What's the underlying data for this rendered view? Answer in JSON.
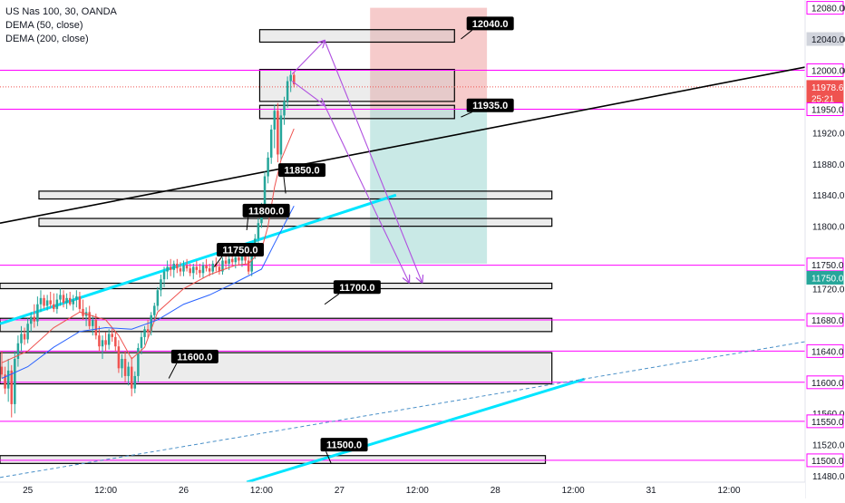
{
  "legend": {
    "symbol": "US Nas 100, 30, OANDA",
    "indicator_1": "DEMA (50, close)",
    "indicator_2": "DEMA (200, close)"
  },
  "colors": {
    "candle_up": "#26a69a",
    "candle_down": "#ef5350",
    "dema_fast": "#ef5350",
    "dema_slow": "#2962ff",
    "level_line": "#ff00ff",
    "trend_cyan": "#00e5ff",
    "projection": "#b050e0",
    "target_zone": "#b2dfdb",
    "stop_zone": "#f4c2c2",
    "price_tag_active": "#26a69a"
  },
  "chart_data": {
    "type": "candlestick",
    "title": "US Nas 100, 30, OANDA",
    "xlabel": "",
    "ylabel": "",
    "ylim": [
      11472,
      12090
    ],
    "y_ticks": [
      12080.0,
      12040.0,
      12000.0,
      11960.0,
      11920.0,
      11880.0,
      11840.0,
      11800.0,
      11760.0,
      11720.0,
      11680.0,
      11640.0,
      11600.0,
      11560.0,
      11520.0,
      11480.0
    ],
    "y_tick_labels": [
      "12080.0",
      "12040.0",
      "12000.0",
      "",
      "11920.0",
      "11880.0",
      "11840.0",
      "11800.0",
      "",
      "11720.0",
      "",
      "",
      "",
      "11560.0",
      "11520.0",
      "11480.0"
    ],
    "x_range_hours": [
      0,
      124
    ],
    "x_ticks": [
      {
        "h": 4,
        "label": "25"
      },
      {
        "h": 16,
        "label": "12:00"
      },
      {
        "h": 28,
        "label": "26"
      },
      {
        "h": 40,
        "label": "12:00"
      },
      {
        "h": 52,
        "label": "27"
      },
      {
        "h": 64,
        "label": "12:00"
      },
      {
        "h": 76,
        "label": "28"
      },
      {
        "h": 88,
        "label": "12:00"
      },
      {
        "h": 100,
        "label": "31"
      },
      {
        "h": 112,
        "label": "12:00"
      }
    ],
    "candles": [
      [
        0.0,
        11620,
        11640,
        11605,
        11610
      ],
      [
        0.5,
        11610,
        11620,
        11585,
        11592
      ],
      [
        1.0,
        11592,
        11630,
        11575,
        11615
      ],
      [
        1.5,
        11615,
        11622,
        11555,
        11572
      ],
      [
        2.0,
        11572,
        11640,
        11560,
        11630
      ],
      [
        2.5,
        11630,
        11660,
        11620,
        11650
      ],
      [
        3.0,
        11650,
        11672,
        11640,
        11662
      ],
      [
        3.5,
        11662,
        11670,
        11648,
        11655
      ],
      [
        4.0,
        11655,
        11682,
        11650,
        11675
      ],
      [
        4.5,
        11675,
        11690,
        11665,
        11684
      ],
      [
        5.0,
        11684,
        11700,
        11670,
        11678
      ],
      [
        5.5,
        11678,
        11710,
        11672,
        11700
      ],
      [
        6.0,
        11700,
        11718,
        11690,
        11708
      ],
      [
        6.5,
        11708,
        11712,
        11694,
        11698
      ],
      [
        7.0,
        11698,
        11712,
        11692,
        11705
      ],
      [
        7.5,
        11705,
        11716,
        11695,
        11700
      ],
      [
        8.0,
        11700,
        11714,
        11690,
        11694
      ],
      [
        8.5,
        11694,
        11714,
        11688,
        11706
      ],
      [
        9.0,
        11706,
        11720,
        11698,
        11712
      ],
      [
        9.5,
        11712,
        11718,
        11696,
        11702
      ],
      [
        10.0,
        11702,
        11714,
        11694,
        11708
      ],
      [
        10.5,
        11708,
        11716,
        11698,
        11700
      ],
      [
        11.0,
        11700,
        11712,
        11692,
        11706
      ],
      [
        11.5,
        11706,
        11718,
        11696,
        11710
      ],
      [
        12.0,
        11710,
        11716,
        11690,
        11694
      ],
      [
        12.5,
        11694,
        11706,
        11680,
        11685
      ],
      [
        13.0,
        11685,
        11696,
        11672,
        11690
      ],
      [
        13.5,
        11690,
        11698,
        11668,
        11672
      ],
      [
        14.0,
        11672,
        11686,
        11660,
        11680
      ],
      [
        14.5,
        11680,
        11688,
        11655,
        11660
      ],
      [
        15.0,
        11660,
        11672,
        11640,
        11646
      ],
      [
        15.5,
        11646,
        11660,
        11630,
        11654
      ],
      [
        16.0,
        11654,
        11664,
        11640,
        11648
      ],
      [
        16.5,
        11648,
        11668,
        11642,
        11662
      ],
      [
        17.0,
        11662,
        11670,
        11652,
        11658
      ],
      [
        17.5,
        11658,
        11666,
        11640,
        11646
      ],
      [
        18.0,
        11646,
        11654,
        11612,
        11618
      ],
      [
        18.5,
        11618,
        11636,
        11606,
        11630
      ],
      [
        19.0,
        11630,
        11640,
        11600,
        11608
      ],
      [
        19.5,
        11608,
        11626,
        11596,
        11620
      ],
      [
        20.0,
        11620,
        11632,
        11582,
        11592
      ],
      [
        20.5,
        11592,
        11614,
        11586,
        11608
      ],
      [
        21.0,
        11608,
        11650,
        11600,
        11644
      ],
      [
        21.5,
        11644,
        11664,
        11636,
        11658
      ],
      [
        22.0,
        11658,
        11672,
        11648,
        11668
      ],
      [
        22.5,
        11668,
        11680,
        11656,
        11664
      ],
      [
        23.0,
        11664,
        11690,
        11660,
        11686
      ],
      [
        23.5,
        11686,
        11702,
        11678,
        11698
      ],
      [
        24.0,
        11698,
        11722,
        11692,
        11718
      ],
      [
        24.5,
        11718,
        11738,
        11710,
        11732
      ],
      [
        25.0,
        11732,
        11748,
        11722,
        11742
      ],
      [
        25.5,
        11742,
        11756,
        11732,
        11748
      ],
      [
        26.0,
        11748,
        11758,
        11736,
        11744
      ],
      [
        26.5,
        11744,
        11756,
        11734,
        11752
      ],
      [
        27.0,
        11752,
        11758,
        11740,
        11746
      ],
      [
        27.5,
        11746,
        11754,
        11736,
        11742
      ],
      [
        28.0,
        11742,
        11756,
        11736,
        11750
      ],
      [
        28.5,
        11750,
        11758,
        11742,
        11746
      ],
      [
        29.0,
        11746,
        11752,
        11736,
        11740
      ],
      [
        29.5,
        11740,
        11752,
        11732,
        11748
      ],
      [
        30.0,
        11748,
        11756,
        11738,
        11744
      ],
      [
        30.5,
        11744,
        11752,
        11734,
        11740
      ],
      [
        31.0,
        11740,
        11754,
        11734,
        11750
      ],
      [
        31.5,
        11750,
        11758,
        11742,
        11746
      ],
      [
        32.0,
        11746,
        11752,
        11736,
        11742
      ],
      [
        32.5,
        11742,
        11756,
        11738,
        11752
      ],
      [
        33.0,
        11752,
        11760,
        11742,
        11748
      ],
      [
        33.5,
        11748,
        11754,
        11738,
        11742
      ],
      [
        34.0,
        11742,
        11760,
        11738,
        11756
      ],
      [
        34.5,
        11756,
        11764,
        11746,
        11752
      ],
      [
        35.0,
        11752,
        11762,
        11744,
        11758
      ],
      [
        35.5,
        11758,
        11766,
        11748,
        11754
      ],
      [
        36.0,
        11754,
        11764,
        11746,
        11760
      ],
      [
        36.5,
        11760,
        11768,
        11750,
        11756
      ],
      [
        37.0,
        11756,
        11766,
        11748,
        11762
      ],
      [
        37.5,
        11762,
        11770,
        11752,
        11756
      ],
      [
        38.0,
        11756,
        11764,
        11738,
        11742
      ],
      [
        38.5,
        11742,
        11770,
        11736,
        11764
      ],
      [
        39.0,
        11764,
        11790,
        11758,
        11784
      ],
      [
        39.5,
        11784,
        11810,
        11778,
        11804
      ],
      [
        40.0,
        11804,
        11830,
        11798,
        11826
      ],
      [
        40.5,
        11826,
        11870,
        11820,
        11864
      ],
      [
        41.0,
        11864,
        11895,
        11855,
        11888
      ],
      [
        41.5,
        11888,
        11930,
        11880,
        11924
      ],
      [
        42.0,
        11924,
        11956,
        11900,
        11948
      ],
      [
        42.5,
        11948,
        11958,
        11882,
        11892
      ],
      [
        43.0,
        11892,
        11950,
        11884,
        11942
      ],
      [
        43.5,
        11942,
        11966,
        11930,
        11960
      ],
      [
        44.0,
        11960,
        11992,
        11952,
        11986
      ],
      [
        44.5,
        11986,
        12000,
        11972,
        11994
      ],
      [
        45.0,
        11994,
        11998,
        11978,
        11982
      ]
    ],
    "dema_50": [
      [
        0,
        11625
      ],
      [
        4,
        11640
      ],
      [
        8,
        11670
      ],
      [
        12,
        11690
      ],
      [
        16,
        11680
      ],
      [
        18,
        11660
      ],
      [
        20,
        11630
      ],
      [
        22,
        11645
      ],
      [
        24,
        11690
      ],
      [
        28,
        11720
      ],
      [
        32,
        11738
      ],
      [
        36,
        11750
      ],
      [
        38,
        11752
      ],
      [
        40,
        11770
      ],
      [
        41,
        11800
      ],
      [
        42,
        11850
      ],
      [
        43,
        11885
      ],
      [
        44,
        11905
      ],
      [
        45,
        11925
      ]
    ],
    "dema_200": [
      [
        0,
        11605
      ],
      [
        4,
        11620
      ],
      [
        8,
        11645
      ],
      [
        12,
        11665
      ],
      [
        16,
        11670
      ],
      [
        20,
        11668
      ],
      [
        24,
        11680
      ],
      [
        28,
        11700
      ],
      [
        32,
        11712
      ],
      [
        36,
        11728
      ],
      [
        40,
        11745
      ],
      [
        42,
        11778
      ],
      [
        44,
        11810
      ],
      [
        45,
        11826
      ]
    ],
    "horizontal_levels": [
      12000.0,
      11950.0,
      11750.0,
      11680.0,
      11640.0,
      11600.0,
      11550.0,
      11500.0
    ],
    "zones": [
      {
        "y1": 12036,
        "y2": 12052,
        "h1": 40,
        "h2": 70
      },
      {
        "y1": 11960,
        "y2": 12001,
        "h1": 40,
        "h2": 70
      },
      {
        "y1": 11938,
        "y2": 11955,
        "h1": 40,
        "h2": 70
      },
      {
        "y1": 11835,
        "y2": 11845,
        "h1": 6,
        "h2": 85
      },
      {
        "y1": 11800,
        "y2": 11810,
        "h1": 6,
        "h2": 85
      },
      {
        "y1": 11720,
        "y2": 11727,
        "h1": 0,
        "h2": 85
      },
      {
        "y1": 11665,
        "y2": 11682,
        "h1": 0,
        "h2": 85
      },
      {
        "y1": 11598,
        "y2": 11638,
        "h1": 0,
        "h2": 85
      },
      {
        "y1": 11496,
        "y2": 11506,
        "h1": 0,
        "h2": 84
      }
    ],
    "trendlines": [
      {
        "kind": "black",
        "from": [
          0,
          11804
        ],
        "to": [
          124,
          12004
        ]
      },
      {
        "kind": "cyan",
        "from": [
          0,
          11675
        ],
        "to": [
          61,
          11840
        ]
      },
      {
        "kind": "cyan",
        "from": [
          38,
          11472
        ],
        "to": [
          90,
          11604
        ]
      },
      {
        "kind": "dashed",
        "from": [
          0,
          11478
        ],
        "to": [
          124,
          11652
        ]
      }
    ],
    "positions": {
      "entry": 11950.0,
      "stop": 12080.0,
      "target": 11752.0,
      "h1": 57,
      "h2": 75
    },
    "projections": [
      [
        [
          45,
          11995
        ],
        [
          50,
          12038
        ]
      ],
      [
        [
          45,
          11986
        ],
        [
          50,
          11955
        ]
      ],
      [
        [
          50,
          12038
        ],
        [
          65,
          11728
        ]
      ],
      [
        [
          50,
          11955
        ],
        [
          63,
          11728
        ]
      ]
    ],
    "callouts": [
      {
        "text": "12040.0",
        "y": 12060,
        "h": 75.5,
        "anchor": [
          71,
          12040
        ]
      },
      {
        "text": "11935.0",
        "y": 11955,
        "h": 75.5,
        "anchor": [
          71,
          11940
        ]
      },
      {
        "text": "11850.0",
        "y": 11872,
        "h": 46.5,
        "anchor": [
          44,
          11842
        ]
      },
      {
        "text": "11800.0",
        "y": 11820,
        "h": 41,
        "anchor": [
          38,
          11795
        ]
      },
      {
        "text": "11750.0",
        "y": 11770,
        "h": 37,
        "anchor": [
          33,
          11748
        ]
      },
      {
        "text": "11700.0",
        "y": 11722,
        "h": 55,
        "anchor": [
          50,
          11700
        ]
      },
      {
        "text": "11600.0",
        "y": 11633,
        "h": 30,
        "anchor": [
          26,
          11605
        ]
      },
      {
        "text": "11500.0",
        "y": 11520,
        "h": 53,
        "anchor": [
          51,
          11496
        ]
      }
    ],
    "right_tags": [
      {
        "text": "12080.0",
        "y": 12080,
        "style": "pink"
      },
      {
        "text": "12040.0",
        "y": 12040,
        "style": "gray"
      },
      {
        "text": "12000.0",
        "y": 12000,
        "style": "pink"
      },
      {
        "text": "11978.6",
        "y": 11978.6,
        "style": "red"
      },
      {
        "text": "25:21",
        "y": 11964,
        "style": "red"
      },
      {
        "text": "11950.0",
        "y": 11950,
        "style": "pink"
      },
      {
        "text": "11750.0",
        "y": 11751,
        "style": "pink"
      },
      {
        "text": "11750.0",
        "y": 11734,
        "style": "green"
      },
      {
        "text": "11680.0",
        "y": 11680,
        "style": "pink"
      },
      {
        "text": "11640.0",
        "y": 11640,
        "style": "pink"
      },
      {
        "text": "11600.0",
        "y": 11600,
        "style": "pink"
      },
      {
        "text": "11550.0",
        "y": 11550,
        "style": "pink"
      },
      {
        "text": "11500.0",
        "y": 11500,
        "style": "pink"
      }
    ],
    "current_price": 11978.6,
    "grid": false
  }
}
